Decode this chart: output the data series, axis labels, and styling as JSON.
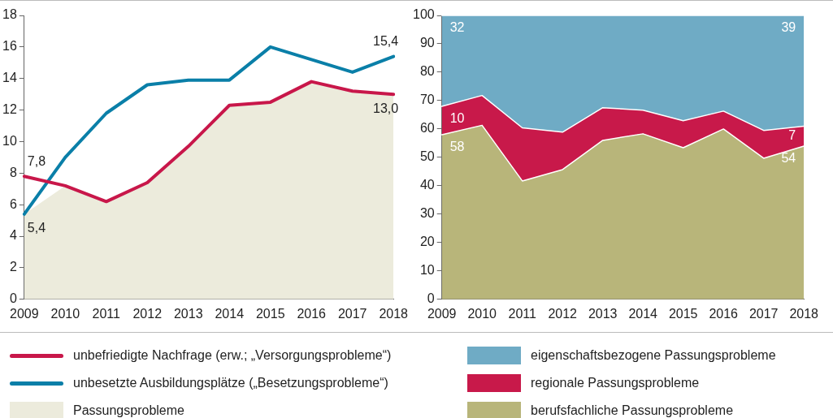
{
  "chart_data": [
    {
      "type": "line",
      "categories": [
        "2009",
        "2010",
        "2011",
        "2012",
        "2013",
        "2014",
        "2015",
        "2016",
        "2017",
        "2018"
      ],
      "ylim": [
        0,
        18
      ],
      "yticks": [
        0,
        2,
        4,
        6,
        8,
        10,
        12,
        14,
        16,
        18
      ],
      "legend": "bottom",
      "series": [
        {
          "name": "unbefriedigte Nachfrage (erw.; „Versorgungsprobleme“)",
          "color": "#c8174a",
          "values": [
            7.8,
            7.2,
            6.2,
            7.4,
            9.7,
            12.3,
            12.5,
            13.8,
            13.2,
            13.0
          ],
          "value_labels": [
            "7,8",
            null,
            null,
            null,
            null,
            null,
            null,
            null,
            null,
            "13,0"
          ]
        },
        {
          "name": "unbesetzte Ausbildungsplätze („Besetzungsprobleme“)",
          "color": "#0a7fa8",
          "values": [
            5.4,
            9.0,
            11.8,
            13.6,
            13.9,
            13.9,
            16.0,
            15.2,
            14.4,
            15.4
          ],
          "value_labels": [
            "5,4",
            null,
            null,
            null,
            null,
            null,
            null,
            null,
            null,
            "15,4"
          ]
        },
        {
          "name": "Passungsprobleme",
          "type": "area",
          "color": "#ecebdc",
          "values": [
            5.4,
            7.2,
            6.2,
            7.4,
            9.7,
            12.3,
            12.5,
            13.8,
            13.2,
            13.0
          ]
        }
      ]
    },
    {
      "type": "area",
      "stacked": true,
      "categories": [
        "2009",
        "2010",
        "2011",
        "2012",
        "2013",
        "2014",
        "2015",
        "2016",
        "2017",
        "2018"
      ],
      "ylim": [
        0,
        100
      ],
      "yticks": [
        0,
        10,
        20,
        30,
        40,
        50,
        60,
        70,
        80,
        90,
        100
      ],
      "legend": "bottom",
      "series": [
        {
          "name": "berufsfachliche Passungsprobleme",
          "color": "#b8b57a",
          "values": [
            58,
            61.3,
            41.7,
            45.7,
            56,
            58.3,
            53.4,
            60,
            49.7,
            54
          ],
          "value_labels": [
            "58",
            null,
            null,
            null,
            null,
            null,
            null,
            null,
            null,
            "54"
          ]
        },
        {
          "name": "regionale Passungsprobleme",
          "color": "#c8194a",
          "values": [
            10,
            10.5,
            18.7,
            13.2,
            11.5,
            8.3,
            9.5,
            6.3,
            9.8,
            7
          ],
          "value_labels": [
            "10",
            null,
            null,
            null,
            null,
            null,
            null,
            null,
            null,
            "7"
          ]
        },
        {
          "name": "eigenschaftsbezogene Passungsprobleme",
          "color": "#6fabc5",
          "values": [
            32,
            28.2,
            39.6,
            41.1,
            32.5,
            33.4,
            37.1,
            33.7,
            40.5,
            39
          ],
          "value_labels": [
            "32",
            null,
            null,
            null,
            null,
            null,
            null,
            null,
            null,
            "39"
          ]
        }
      ]
    }
  ]
}
